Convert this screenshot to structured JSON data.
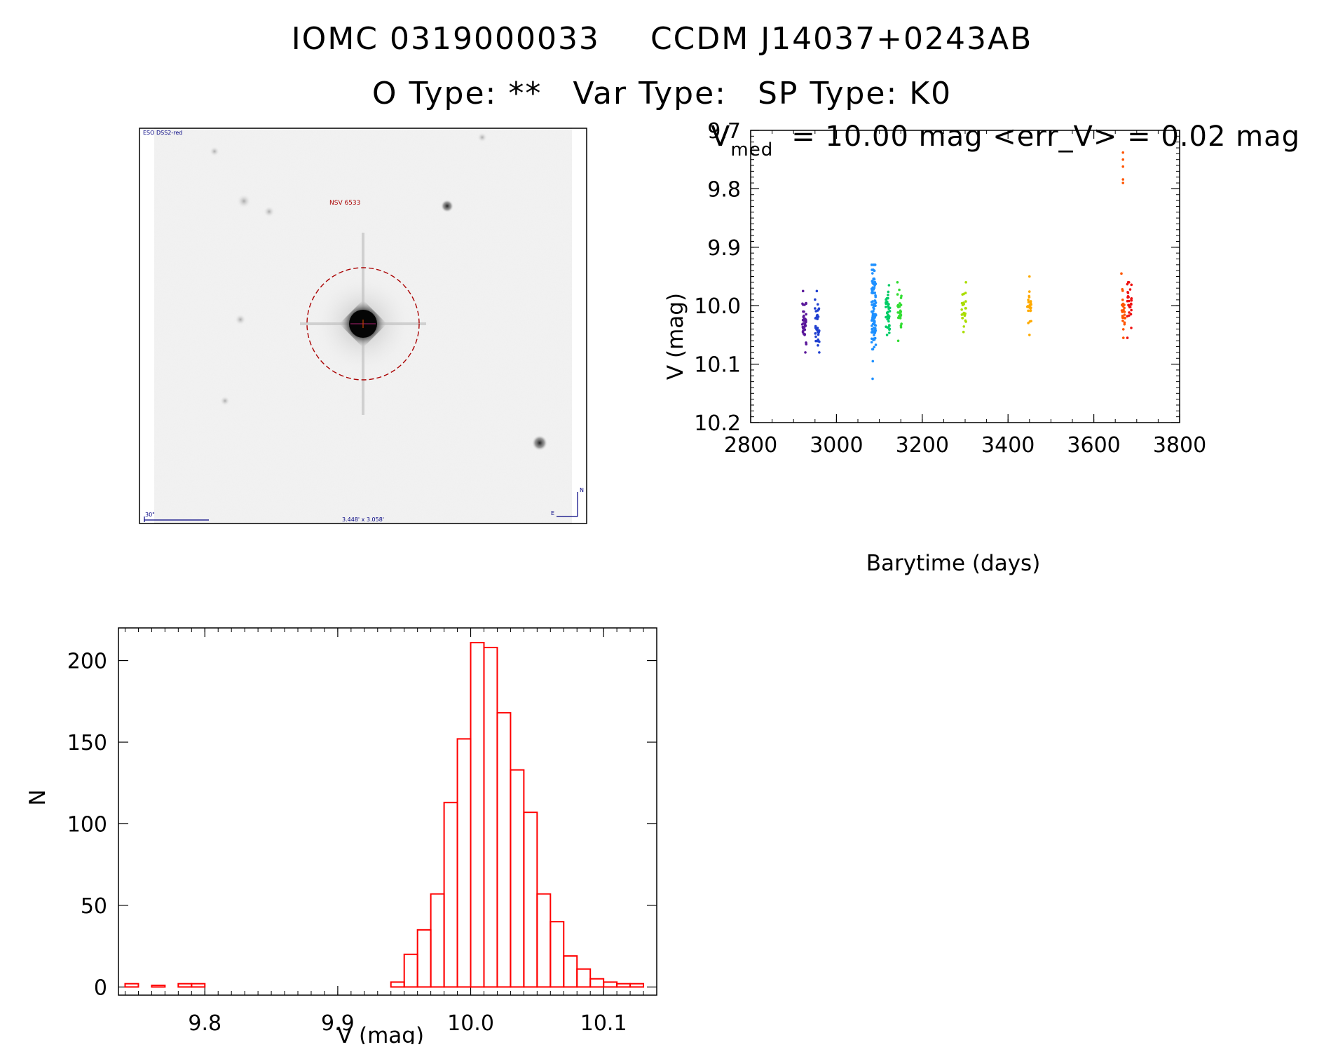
{
  "header": {
    "id1": "IOMC 0319000033",
    "id2": "CCDM J14037+0243AB",
    "o_type": "O Type: **",
    "var_type": "Var Type:",
    "sp_type": "SP Type: K0"
  },
  "finder": {
    "survey_label": "ESO DSS2-red",
    "object_label": "NSV 6533",
    "scale_label": "30\"",
    "fov_label": "3.448' x 3.058'",
    "north_label": "N",
    "east_label": "E",
    "colors": {
      "frame": "#000000",
      "circle": "#aa0000",
      "text_red": "#aa0000",
      "text_blue": "#000080"
    }
  },
  "chart_data": [
    {
      "type": "scatter",
      "name_key": "lightcurve",
      "title_v": "V",
      "title_sub": "med",
      "title_rest": "= 10.00 mag <err_V> = 0.02 mag",
      "xlabel": "Barytime (days)",
      "ylabel": "V (mag)",
      "xlim": [
        2800,
        3800
      ],
      "ylim": [
        10.2,
        9.7
      ],
      "y_inverted": true,
      "xticks": [
        2800,
        3000,
        3200,
        3400,
        3600,
        3800
      ],
      "yticks": [
        9.7,
        9.8,
        9.9,
        10.0,
        10.1,
        10.2
      ],
      "xtick_labels": [
        "2800",
        "3000",
        "3200",
        "3400",
        "3600",
        "3800"
      ],
      "ytick_labels": [
        "9.7",
        "9.8",
        "9.9",
        "10.0",
        "10.1",
        "10.2"
      ],
      "groups": [
        {
          "x": 2925,
          "y_center": 10.025,
          "y_min": 9.975,
          "y_max": 10.08,
          "n": 40,
          "color": "#5a189a"
        },
        {
          "x": 2955,
          "y_center": 10.03,
          "y_min": 9.975,
          "y_max": 10.08,
          "n": 35,
          "color": "#2040d0"
        },
        {
          "x": 3087,
          "y_center": 10.0,
          "y_min": 9.93,
          "y_max": 10.125,
          "n": 110,
          "color": "#1e90ff"
        },
        {
          "x": 3120,
          "y_center": 10.015,
          "y_min": 9.965,
          "y_max": 10.05,
          "n": 40,
          "color": "#00cc66"
        },
        {
          "x": 3147,
          "y_center": 10.01,
          "y_min": 9.96,
          "y_max": 10.06,
          "n": 30,
          "color": "#33dd33"
        },
        {
          "x": 3297,
          "y_center": 10.005,
          "y_min": 9.96,
          "y_max": 10.045,
          "n": 25,
          "color": "#aadd00"
        },
        {
          "x": 3450,
          "y_center": 10.0,
          "y_min": 9.95,
          "y_max": 10.05,
          "n": 25,
          "color": "#ffaa00"
        },
        {
          "x": 3668,
          "y_center": 10.01,
          "y_min": 9.945,
          "y_max": 10.055,
          "n": 25,
          "color": "#ff5500"
        },
        {
          "x": 3683,
          "y_center": 9.995,
          "y_min": 9.96,
          "y_max": 10.055,
          "n": 30,
          "color": "#ee1111"
        }
      ],
      "outliers": [
        {
          "x": 3668,
          "y": 9.738,
          "color": "#ff5500"
        },
        {
          "x": 3668,
          "y": 9.75,
          "color": "#ff5500"
        },
        {
          "x": 3668,
          "y": 9.762,
          "color": "#ff5500"
        },
        {
          "x": 3668,
          "y": 9.784,
          "color": "#ff5500"
        },
        {
          "x": 3668,
          "y": 9.79,
          "color": "#ff5500"
        }
      ]
    },
    {
      "type": "bar",
      "name_key": "histogram",
      "style": "step",
      "xlabel": "V (mag)",
      "ylabel": "N",
      "xlim": [
        9.735,
        10.14
      ],
      "ylim": [
        -5,
        220
      ],
      "xticks": [
        9.8,
        9.9,
        10.0,
        10.1
      ],
      "xtick_labels": [
        "9.8",
        "9.9",
        "10.0",
        "10.1"
      ],
      "yticks": [
        0,
        50,
        100,
        150,
        200
      ],
      "ytick_labels": [
        "0",
        "50",
        "100",
        "150",
        "200"
      ],
      "color": "#ff0000",
      "bin_start": 9.74,
      "bin_width": 0.01,
      "counts": [
        2,
        0,
        1,
        0,
        2,
        2,
        0,
        0,
        0,
        0,
        0,
        0,
        0,
        0,
        0,
        0,
        0,
        0,
        0,
        0,
        3,
        20,
        35,
        57,
        113,
        152,
        211,
        208,
        168,
        133,
        107,
        57,
        40,
        19,
        11,
        5,
        3,
        2,
        2
      ]
    }
  ]
}
